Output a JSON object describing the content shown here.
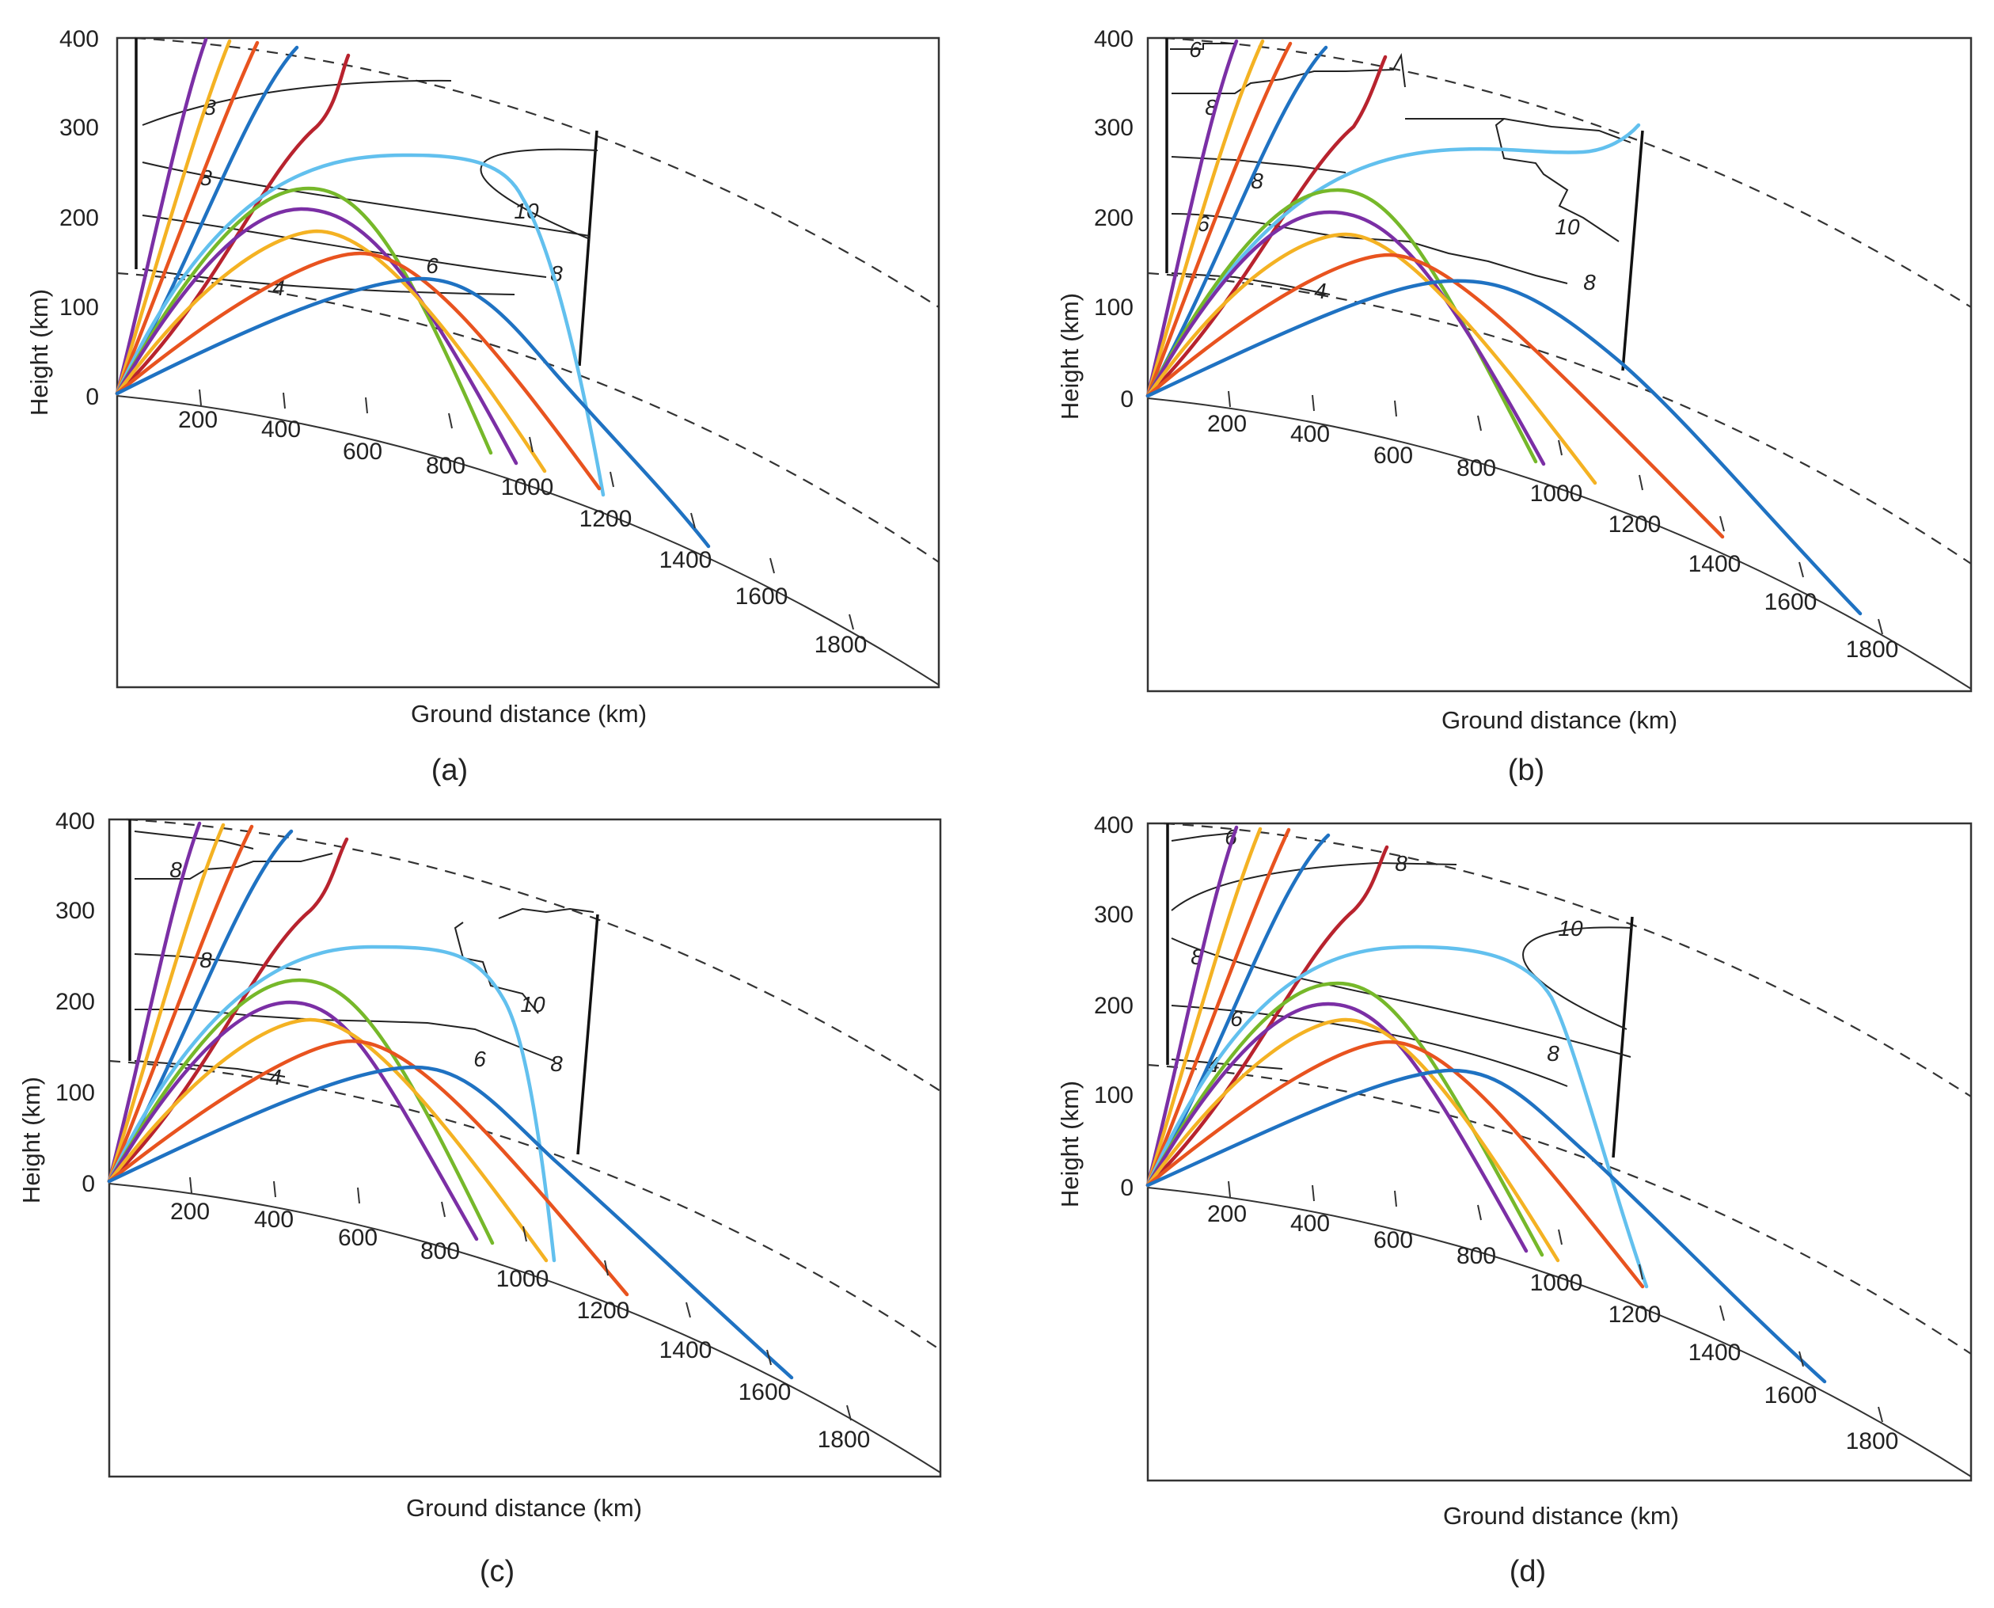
{
  "chart_data": [
    {
      "type": "line",
      "panel": "(a)",
      "xlabel": "Ground distance (km)",
      "ylabel": "Height (km)",
      "y_ticks": [
        0,
        100,
        200,
        300,
        400
      ],
      "ground_ticks": [
        200,
        400,
        600,
        800,
        1000,
        1200,
        1400,
        1600,
        1800
      ],
      "contour_labels": [
        "8",
        "8",
        "10",
        "8",
        "6",
        "4"
      ],
      "rays": [
        {
          "color": "#7b2fa5",
          "apex_height": null,
          "landing": null
        },
        {
          "color": "#f4b223",
          "apex_height": null,
          "landing": null
        },
        {
          "color": "#e8531f",
          "apex_height": null,
          "landing": null
        },
        {
          "color": "#1f72c2",
          "apex_height": null,
          "landing": null
        },
        {
          "color": "#b8232e",
          "apex_height": null,
          "landing": null
        },
        {
          "color": "#62c0ee",
          "apex_height": 265,
          "landing": 1200
        },
        {
          "color": "#76b82a",
          "apex_height": 228,
          "landing": 920
        },
        {
          "color": "#7b2fa5",
          "apex_height": 205,
          "landing": 970
        },
        {
          "color": "#f4b223",
          "apex_height": 183,
          "landing": 1040
        },
        {
          "color": "#e8531f",
          "apex_height": 160,
          "landing": 1170
        },
        {
          "color": "#1f72c2",
          "apex_height": 130,
          "landing": 1430
        }
      ]
    },
    {
      "type": "line",
      "panel": "(b)",
      "xlabel": "Ground distance (km)",
      "ylabel": "Height (km)",
      "y_ticks": [
        0,
        100,
        200,
        300,
        400
      ],
      "ground_ticks": [
        200,
        400,
        600,
        800,
        1000,
        1200,
        1400,
        1600,
        1800
      ],
      "contour_labels": [
        "6",
        "8",
        "8",
        "6",
        "10",
        "8",
        "4"
      ],
      "rays": [
        {
          "color": "#7b2fa5",
          "apex_height": null,
          "landing": null
        },
        {
          "color": "#f4b223",
          "apex_height": null,
          "landing": null
        },
        {
          "color": "#e8531f",
          "apex_height": null,
          "landing": null
        },
        {
          "color": "#1f72c2",
          "apex_height": null,
          "landing": null
        },
        {
          "color": "#b8232e",
          "apex_height": null,
          "landing": null
        },
        {
          "color": "#62c0ee",
          "apex_height": 300,
          "landing": null
        },
        {
          "color": "#76b82a",
          "apex_height": 225,
          "landing": 970
        },
        {
          "color": "#7b2fa5",
          "apex_height": 200,
          "landing": 960
        },
        {
          "color": "#f4b223",
          "apex_height": 178,
          "landing": 1090
        },
        {
          "color": "#e8531f",
          "apex_height": 158,
          "landing": 1380
        },
        {
          "color": "#1f72c2",
          "apex_height": 128,
          "landing": 1720
        }
      ]
    },
    {
      "type": "line",
      "panel": "(c)",
      "xlabel": "Ground distance (km)",
      "ylabel": "Height (km)",
      "y_ticks": [
        0,
        100,
        200,
        300,
        400
      ],
      "ground_ticks": [
        200,
        400,
        600,
        800,
        1000,
        1200,
        1400,
        1600,
        1800
      ],
      "contour_labels": [
        "8",
        "8",
        "10",
        "8",
        "6",
        "4"
      ],
      "rays": [
        {
          "color": "#7b2fa5",
          "apex_height": null,
          "landing": null
        },
        {
          "color": "#f4b223",
          "apex_height": null,
          "landing": null
        },
        {
          "color": "#e8531f",
          "apex_height": null,
          "landing": null
        },
        {
          "color": "#1f72c2",
          "apex_height": null,
          "landing": null
        },
        {
          "color": "#b8232e",
          "apex_height": null,
          "landing": null
        },
        {
          "color": "#62c0ee",
          "apex_height": 258,
          "landing": 1080
        },
        {
          "color": "#76b82a",
          "apex_height": 222,
          "landing": 940
        },
        {
          "color": "#7b2fa5",
          "apex_height": 198,
          "landing": 900
        },
        {
          "color": "#f4b223",
          "apex_height": 178,
          "landing": 1050
        },
        {
          "color": "#e8531f",
          "apex_height": 160,
          "landing": 1230
        },
        {
          "color": "#1f72c2",
          "apex_height": 128,
          "landing": 1640
        }
      ]
    },
    {
      "type": "line",
      "panel": "(d)",
      "xlabel": "Ground distance (km)",
      "ylabel": "Height (km)",
      "y_ticks": [
        0,
        100,
        200,
        300,
        400
      ],
      "ground_ticks": [
        200,
        400,
        600,
        800,
        1000,
        1200,
        1400,
        1600,
        1800
      ],
      "contour_labels": [
        "6",
        "8",
        "10",
        "8",
        "6",
        "8",
        "4"
      ],
      "rays": [
        {
          "color": "#7b2fa5",
          "apex_height": null,
          "landing": null
        },
        {
          "color": "#f4b223",
          "apex_height": null,
          "landing": null
        },
        {
          "color": "#e8531f",
          "apex_height": null,
          "landing": null
        },
        {
          "color": "#1f72c2",
          "apex_height": null,
          "landing": null
        },
        {
          "color": "#b8232e",
          "apex_height": null,
          "landing": null
        },
        {
          "color": "#62c0ee",
          "apex_height": 262,
          "landing": 1200
        },
        {
          "color": "#76b82a",
          "apex_height": 222,
          "landing": 990
        },
        {
          "color": "#7b2fa5",
          "apex_height": 198,
          "landing": 930
        },
        {
          "color": "#f4b223",
          "apex_height": 180,
          "landing": 1010
        },
        {
          "color": "#e8531f",
          "apex_height": 160,
          "landing": 1200
        },
        {
          "color": "#1f72c2",
          "apex_height": 128,
          "landing": 1680
        }
      ]
    }
  ]
}
